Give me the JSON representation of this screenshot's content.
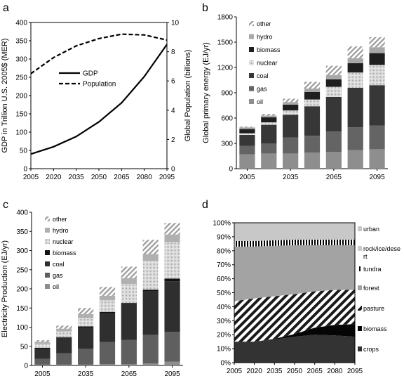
{
  "chart_data": [
    {
      "panel": "a",
      "type": "line",
      "x": [
        2005,
        2020,
        2035,
        2050,
        2065,
        2080,
        2095
      ],
      "xticks": [
        "2005",
        "2020",
        "2035",
        "2050",
        "2065",
        "2080",
        "2095"
      ],
      "ylabel": "GDP in Trillion U.S. 2005$ (MER)",
      "y2label": "Global Population (billions)",
      "ylim": [
        0,
        400
      ],
      "yticks": [
        "0",
        "50",
        "100",
        "150",
        "200",
        "250",
        "300",
        "350",
        "400"
      ],
      "y2lim": [
        0,
        10
      ],
      "y2ticks": [
        "0",
        "2",
        "4",
        "6",
        "8",
        "10"
      ],
      "legend_position": "center-left",
      "series": [
        {
          "name": "GDP",
          "axis": "left",
          "style": "solid",
          "values": [
            40,
            60,
            88,
            128,
            180,
            252,
            340
          ]
        },
        {
          "name": "Population",
          "axis": "right",
          "style": "dashed",
          "values": [
            6.5,
            7.6,
            8.4,
            8.9,
            9.2,
            9.15,
            8.8
          ]
        }
      ]
    },
    {
      "panel": "b",
      "type": "bar",
      "stacked": true,
      "categories": [
        "2005",
        "2020",
        "2035",
        "2050",
        "2065",
        "2080",
        "2095"
      ],
      "xticks": [
        "2005",
        "2035",
        "2065",
        "2095"
      ],
      "ylabel": "Global primary energy (EJ/yr)",
      "ylim": [
        0,
        1800
      ],
      "yticks": [
        "0",
        "300",
        "600",
        "900",
        "1200",
        "1500",
        "1800"
      ],
      "legend_position": "top-left",
      "series": [
        {
          "name": "oil",
          "values": [
            170,
            180,
            180,
            190,
            200,
            220,
            230
          ]
        },
        {
          "name": "gas",
          "values": [
            100,
            120,
            190,
            200,
            240,
            270,
            280
          ]
        },
        {
          "name": "coal",
          "values": [
            130,
            220,
            270,
            350,
            410,
            470,
            480
          ]
        },
        {
          "name": "nuclear",
          "values": [
            20,
            30,
            50,
            80,
            120,
            180,
            240
          ]
        },
        {
          "name": "biomass",
          "values": [
            50,
            60,
            70,
            90,
            90,
            110,
            140
          ]
        },
        {
          "name": "hydro",
          "values": [
            20,
            20,
            30,
            40,
            50,
            60,
            70
          ]
        },
        {
          "name": "other",
          "values": [
            10,
            20,
            40,
            80,
            110,
            140,
            120
          ]
        }
      ]
    },
    {
      "panel": "c",
      "type": "bar",
      "stacked": true,
      "categories": [
        "2005",
        "2020",
        "2035",
        "2050",
        "2065",
        "2080",
        "2095"
      ],
      "xticks": [
        "2005",
        "2035",
        "2065",
        "2095"
      ],
      "ylabel": "Electricity Production (EJ/yr)",
      "ylim": [
        0,
        400
      ],
      "yticks": [
        "0",
        "50",
        "100",
        "150",
        "200",
        "250",
        "300",
        "350",
        "400"
      ],
      "legend_position": "top-left",
      "series": [
        {
          "name": "oil",
          "values": [
            2,
            2,
            2,
            3,
            3,
            5,
            10
          ]
        },
        {
          "name": "gas",
          "values": [
            15,
            30,
            42,
            58,
            64,
            75,
            78
          ]
        },
        {
          "name": "coal",
          "values": [
            27,
            40,
            55,
            75,
            92,
            113,
            132
          ]
        },
        {
          "name": "biomass",
          "values": [
            2,
            2,
            3,
            4,
            4,
            5,
            7
          ]
        },
        {
          "name": "nuclear",
          "values": [
            10,
            15,
            22,
            30,
            50,
            75,
            95
          ]
        },
        {
          "name": "hydro",
          "values": [
            6,
            7,
            10,
            12,
            15,
            18,
            20
          ]
        },
        {
          "name": "other",
          "values": [
            4,
            8,
            16,
            23,
            30,
            37,
            30
          ]
        }
      ]
    },
    {
      "panel": "d",
      "type": "area",
      "stacked": true,
      "x": [
        2005,
        2020,
        2035,
        2050,
        2065,
        2080,
        2095
      ],
      "xticks": [
        "2005",
        "2020",
        "2035",
        "2050",
        "2065",
        "2080",
        "2095"
      ],
      "ylim": [
        0,
        100
      ],
      "yticks": [
        "0%",
        "10%",
        "20%",
        "30%",
        "40%",
        "50%",
        "60%",
        "70%",
        "80%",
        "90%",
        "100%"
      ],
      "legend_position": "right",
      "series": [
        {
          "name": "crops",
          "values": [
            15,
            15,
            16.5,
            18.5,
            20,
            19.5,
            18.5
          ]
        },
        {
          "name": "biomass",
          "values": [
            0,
            0,
            0.5,
            2,
            5,
            7.5,
            9
          ]
        },
        {
          "name": "pasture",
          "values": [
            29,
            31,
            30.5,
            28.5,
            26,
            25,
            24.5
          ]
        },
        {
          "name": "forest",
          "values": [
            39,
            37,
            36,
            35,
            33,
            32,
            32
          ]
        },
        {
          "name": "tundra",
          "values": [
            4,
            4,
            4,
            4,
            4,
            4,
            4
          ]
        },
        {
          "name": "rock/ice/dese rt",
          "values": [
            0,
            0,
            0,
            0,
            0,
            0,
            0
          ]
        },
        {
          "name": "urban",
          "values": [
            13,
            13,
            12.5,
            12,
            12,
            12,
            12
          ]
        }
      ]
    }
  ],
  "panels": {
    "a": "a",
    "b": "b",
    "c": "c",
    "d": "d"
  }
}
